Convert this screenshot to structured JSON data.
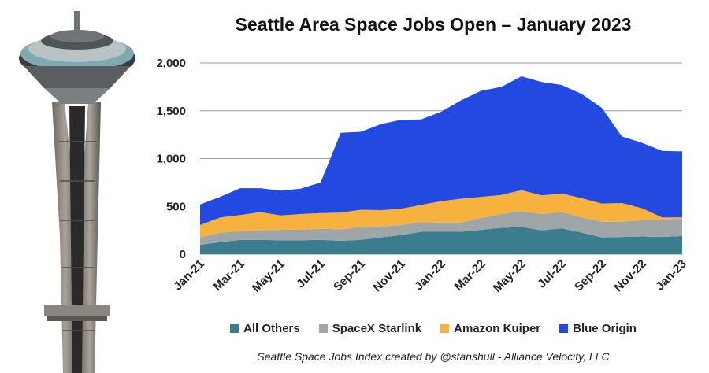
{
  "colors": {
    "all_others": "#3b7d8f",
    "spacex_starlink": "#a0a6a8",
    "amazon_kuiper": "#f6b13e",
    "blue_origin": "#2249e0"
  },
  "chart_data": {
    "type": "area",
    "stacked": true,
    "title": "Seattle Area Space Jobs Open – January 2023",
    "footer": "Seattle Space Jobs Index created by @stanshull - Alliance Velocity, LLC",
    "x": [
      "Jan-21",
      "Feb-21",
      "Mar-21",
      "Apr-21",
      "May-21",
      "Jun-21",
      "Jul-21",
      "Aug-21",
      "Sep-21",
      "Oct-21",
      "Nov-21",
      "Dec-21",
      "Jan-22",
      "Feb-22",
      "Mar-22",
      "Apr-22",
      "May-22",
      "Jun-22",
      "Jul-22",
      "Aug-22",
      "Sep-22",
      "Oct-22",
      "Nov-22",
      "Dec-22",
      "Jan-23"
    ],
    "x_tick_labels": [
      "Jan-21",
      "Mar-21",
      "May-21",
      "Jul-21",
      "Sep-21",
      "Nov-21",
      "Jan-22",
      "Mar-22",
      "May-22",
      "Jul-22",
      "Sep-22",
      "Nov-22",
      "Jan-23"
    ],
    "y_tick_labels": [
      "0",
      "500",
      "1,000",
      "1,500",
      "2,000"
    ],
    "ylim": [
      0,
      2000
    ],
    "yticks": [
      0,
      500,
      1000,
      1500,
      2000
    ],
    "grid": true,
    "legend_position": "bottom",
    "series": [
      {
        "name": "All Others",
        "color": "#3b7d8f",
        "values": [
          100,
          125,
          150,
          150,
          145,
          145,
          150,
          140,
          150,
          175,
          200,
          235,
          235,
          235,
          255,
          275,
          285,
          250,
          270,
          225,
          175,
          180,
          185,
          180,
          190
        ]
      },
      {
        "name": "SpaceX Starlink",
        "color": "#a0a6a8",
        "values": [
          75,
          100,
          90,
          100,
          110,
          110,
          115,
          120,
          135,
          115,
          105,
          100,
          95,
          95,
          125,
          145,
          165,
          170,
          170,
          160,
          165,
          160,
          170,
          180,
          180
        ]
      },
      {
        "name": "Amazon Kuiper",
        "color": "#f6b13e",
        "values": [
          130,
          160,
          170,
          190,
          150,
          165,
          165,
          175,
          180,
          170,
          170,
          180,
          225,
          250,
          220,
          200,
          220,
          195,
          195,
          200,
          190,
          195,
          125,
          25,
          15
        ]
      },
      {
        "name": "Blue Origin",
        "color": "#2249e0",
        "values": [
          215,
          215,
          280,
          250,
          260,
          265,
          320,
          835,
          815,
          900,
          930,
          895,
          935,
          1030,
          1110,
          1130,
          1190,
          1185,
          1135,
          1090,
          1000,
          695,
          685,
          695,
          690
        ]
      }
    ]
  }
}
